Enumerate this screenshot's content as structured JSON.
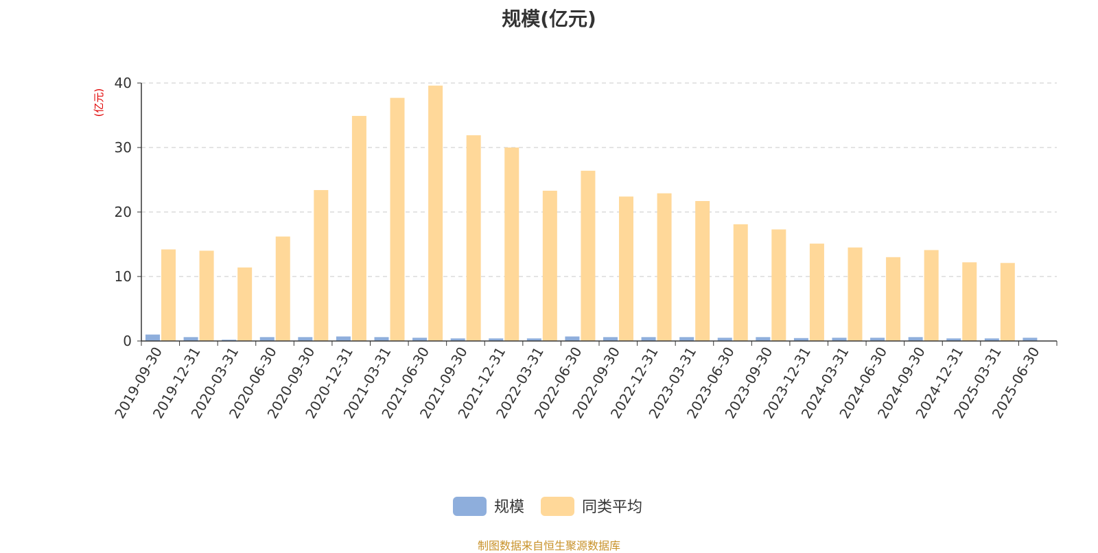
{
  "chart_data": {
    "type": "bar",
    "title": "规模(亿元)",
    "ylabel": "(亿元)",
    "ylim": [
      0,
      40
    ],
    "yticks": [
      0,
      10,
      20,
      30,
      40
    ],
    "grid": true,
    "legend_position": "bottom-center",
    "categories": [
      "2019-09-30",
      "2019-12-31",
      "2020-03-31",
      "2020-06-30",
      "2020-09-30",
      "2020-12-31",
      "2021-03-31",
      "2021-06-30",
      "2021-09-30",
      "2021-12-31",
      "2022-03-31",
      "2022-06-30",
      "2022-09-30",
      "2022-12-31",
      "2023-03-31",
      "2023-06-30",
      "2023-09-30",
      "2023-12-31",
      "2024-03-31",
      "2024-06-30",
      "2024-09-30",
      "2024-12-31",
      "2025-03-31",
      "2025-06-30"
    ],
    "series": [
      {
        "name": "规模",
        "color": "#8eaedc",
        "values": [
          1.0,
          0.6,
          0.2,
          0.6,
          0.6,
          0.7,
          0.6,
          0.5,
          0.4,
          0.4,
          0.4,
          0.7,
          0.6,
          0.6,
          0.6,
          0.5,
          0.6,
          0.45,
          0.5,
          0.5,
          0.6,
          0.4,
          0.4,
          0.5
        ]
      },
      {
        "name": "同类平均",
        "color": "#ffd899",
        "values": [
          14.2,
          14.0,
          11.4,
          16.2,
          23.4,
          34.9,
          37.7,
          39.6,
          31.9,
          30.0,
          23.3,
          26.4,
          22.4,
          22.9,
          21.7,
          18.1,
          17.3,
          15.1,
          14.5,
          13.0,
          14.1,
          12.2,
          12.1,
          null
        ]
      }
    ],
    "source": "制图数据来自恒生聚源数据库"
  }
}
